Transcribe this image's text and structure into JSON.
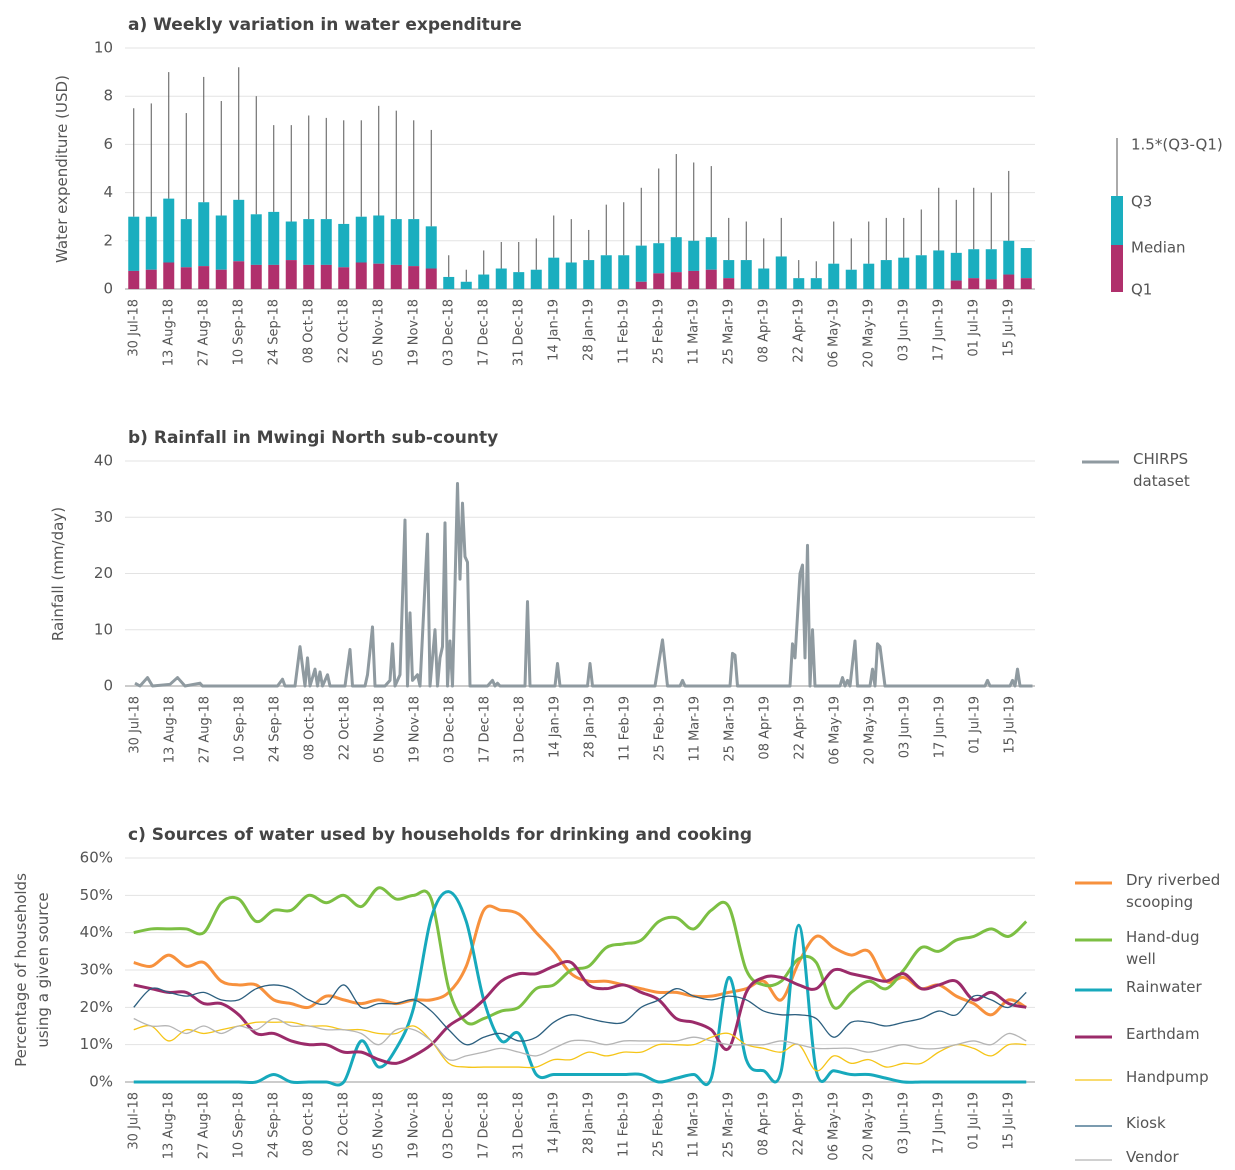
{
  "chart_data": [
    {
      "type": "box",
      "title": "a) Weekly variation in water expenditure",
      "ylabel": "Water expenditure (USD)",
      "categories": [
        "30 Jul-18",
        null,
        "13 Aug-18",
        null,
        "27 Aug-18",
        null,
        "10 Sep-18",
        null,
        "24 Sep-18",
        null,
        "08 Oct-18",
        null,
        "22 Oct-18",
        null,
        "05 Nov-18",
        null,
        "19 Nov-18",
        null,
        "03 Dec-18",
        null,
        "17 Dec-18",
        null,
        "31 Dec-18",
        null,
        "14 Jan-19",
        null,
        "28 Jan-19",
        null,
        "11 Feb-19",
        null,
        "25 Feb-19",
        null,
        "11 Mar-19",
        null,
        "25 Mar-19",
        null,
        "08 Apr-19",
        null,
        "22 Apr-19",
        null,
        "06 May-19",
        null,
        "20 May-19",
        null,
        "03 Jun-19",
        null,
        "17 Jun-19",
        null,
        "01 Jul-19",
        null,
        "15 Jul-19",
        null
      ],
      "series": [
        {
          "name": "1.5*(Q3-Q1)",
          "color": "#555555",
          "values": [
            7.5,
            7.7,
            9.0,
            7.3,
            8.8,
            7.8,
            9.2,
            8.0,
            6.8,
            6.8,
            7.2,
            7.1,
            7.0,
            7.0,
            7.6,
            7.4,
            7.0,
            6.6,
            1.4,
            0.8,
            1.6,
            1.95,
            1.95,
            2.1,
            3.05,
            2.9,
            2.45,
            3.5,
            3.6,
            4.2,
            5.0,
            5.6,
            5.25,
            5.1,
            2.95,
            2.8,
            2.1,
            2.95,
            1.2,
            1.15,
            2.8,
            2.1,
            2.8,
            2.95,
            2.95,
            3.3,
            4.2,
            3.7,
            4.2,
            4.0,
            4.9,
            null
          ]
        },
        {
          "name": "Q3",
          "color": "#1aaebf",
          "values": [
            3.0,
            3.0,
            3.75,
            2.9,
            3.6,
            3.05,
            3.7,
            3.1,
            3.2,
            2.8,
            2.9,
            2.9,
            2.7,
            3.0,
            3.05,
            2.9,
            2.9,
            2.6,
            0.5,
            0.3,
            0.6,
            0.85,
            0.7,
            0.8,
            1.3,
            1.1,
            1.2,
            1.4,
            1.4,
            1.8,
            1.9,
            2.15,
            2.0,
            2.15,
            1.2,
            1.2,
            0.85,
            1.35,
            0.45,
            0.45,
            1.05,
            0.8,
            1.05,
            1.2,
            1.3,
            1.4,
            1.6,
            1.5,
            1.65,
            1.65,
            2.0,
            1.7
          ]
        },
        {
          "name": "Median",
          "color": "#b0306c",
          "values": [
            0.75,
            0.8,
            1.1,
            0.9,
            0.95,
            0.8,
            1.15,
            1.0,
            1.0,
            1.2,
            1.0,
            1.0,
            0.9,
            1.1,
            1.05,
            1.0,
            0.95,
            0.85,
            0,
            0,
            0,
            0,
            0,
            0,
            0,
            0,
            0,
            0,
            0,
            0.3,
            0.65,
            0.7,
            0.75,
            0.8,
            0.45,
            0,
            0,
            0,
            0,
            0,
            0,
            0,
            0,
            0,
            0,
            0,
            0,
            0.35,
            0.45,
            0.4,
            0.6,
            0.45
          ]
        },
        {
          "name": "Q1",
          "color": "#b0306c",
          "values": [
            0,
            0,
            0,
            0,
            0,
            0,
            0,
            0,
            0,
            0,
            0,
            0,
            0,
            0,
            0,
            0,
            0,
            0,
            0,
            0,
            0,
            0,
            0,
            0,
            0,
            0,
            0,
            0,
            0,
            0,
            0,
            0,
            0,
            0,
            0,
            0,
            0,
            0,
            0,
            0,
            0,
            0,
            0,
            0,
            0,
            0,
            0,
            0,
            0,
            0,
            0,
            0
          ]
        }
      ],
      "ylim": [
        0,
        10
      ],
      "yticks": [
        0,
        2,
        4,
        6,
        8,
        10
      ],
      "grid": true
    },
    {
      "type": "line",
      "title": "b) Rainfall in Mwingi North sub-county",
      "ylabel": "Rainfall (mm/day)",
      "x": [
        "30 Jul-18",
        "01 Aug-18",
        "04 Aug-18",
        "06 Aug-18",
        "13 Aug-18",
        "16 Aug-18",
        "19 Aug-18",
        "25 Aug-18",
        "26 Aug-18",
        "25 Sep-18",
        "27 Sep-18",
        "28 Sep-18",
        "02 Oct-18",
        "04 Oct-18",
        "06 Oct-18",
        "07 Oct-18",
        "08 Oct-18",
        "10 Oct-18",
        "11 Oct-18",
        "12 Oct-18",
        "13 Oct-18",
        "15 Oct-18",
        "16 Oct-18",
        "22 Oct-18",
        "24 Oct-18",
        "25 Oct-18",
        "30 Oct-18",
        "31 Oct-18",
        "02 Nov-18",
        "03 Nov-18",
        "07 Nov-18",
        "09 Nov-18",
        "10 Nov-18",
        "11 Nov-18",
        "13 Nov-18",
        "15 Nov-18",
        "16 Nov-18",
        "17 Nov-18",
        "18 Nov-18",
        "20 Nov-18",
        "21 Nov-18",
        "24 Nov-18",
        "25 Nov-18",
        "27 Nov-18",
        "28 Nov-18",
        "29 Nov-18",
        "30 Nov-18",
        "01 Dec-18",
        "02 Dec-18",
        "03 Dec-18",
        "04 Dec-18",
        "06 Dec-18",
        "07 Dec-18",
        "08 Dec-18",
        "09 Dec-18",
        "10 Dec-18",
        "11 Dec-18",
        "18 Dec-18",
        "20 Dec-18",
        "21 Dec-18",
        "22 Dec-18",
        "23 Dec-18",
        "02 Jan-19",
        "03 Jan-19",
        "04 Jan-19",
        "14 Jan-19",
        "15 Jan-19",
        "16 Jan-19",
        "27 Jan-19",
        "28 Jan-19",
        "29 Jan-19",
        "23 Feb-19",
        "26 Feb-19",
        "28 Feb-19",
        "05 Mar-19",
        "06 Mar-19",
        "07 Mar-19",
        "25 Mar-19",
        "26 Mar-19",
        "27 Mar-19",
        "28 Mar-19",
        "18 Apr-19",
        "19 Apr-19",
        "20 Apr-19",
        "22 Apr-19",
        "23 Apr-19",
        "24 Apr-19",
        "25 Apr-19",
        "26 Apr-19",
        "27 Apr-19",
        "28 Apr-19",
        "08 May-19",
        "09 May-19",
        "10 May-19",
        "11 May-19",
        "12 May-19",
        "14 May-19",
        "15 May-19",
        "20 May-19",
        "21 May-19",
        "22 May-19",
        "23 May-19",
        "24 May-19",
        "26 May-19",
        "05 Jul-19",
        "06 Jul-19",
        "07 Jul-19",
        "15 Jul-19",
        "16 Jul-19",
        "17 Jul-19",
        "18 Jul-19",
        "19 Jul-19",
        "24 Jul-19"
      ],
      "series": [
        {
          "name": "CHIRPS dataset",
          "color": "#8f9aa0",
          "values": [
            0.5,
            0,
            1.5,
            0,
            0.3,
            1.5,
            0,
            0.5,
            0,
            0,
            1.2,
            0,
            0,
            7,
            0,
            5,
            0,
            3,
            0,
            2.5,
            0,
            2,
            0,
            0,
            6.5,
            0,
            0,
            2,
            10.5,
            0,
            0,
            1,
            7.5,
            0,
            2,
            29.5,
            0,
            13,
            1,
            2,
            0,
            27,
            0,
            10,
            0,
            5,
            7,
            29,
            0,
            8,
            0,
            36,
            19,
            32.5,
            23,
            22,
            0,
            0,
            1,
            0,
            0.5,
            0,
            0,
            15,
            0,
            0,
            4,
            0,
            0,
            4,
            0,
            0,
            8.2,
            0,
            0,
            1,
            0,
            0,
            5.8,
            5.5,
            0,
            0,
            7.5,
            5,
            20,
            21.5,
            5,
            25,
            0,
            10,
            0,
            0,
            1.5,
            0,
            1,
            0,
            8,
            0,
            0,
            3,
            0,
            7.5,
            7,
            0,
            0,
            1,
            0,
            0,
            1,
            0,
            3,
            0,
            0
          ]
        }
      ],
      "xlim": [
        "26 Jul-18",
        "25 Jul-19"
      ],
      "xticks": [
        "30 Jul-18",
        "13 Aug-18",
        "27 Aug-18",
        "10 Sep-18",
        "24 Sep-18",
        "08 Oct-18",
        "22 Oct-18",
        "05 Nov-18",
        "19 Nov-18",
        "03 Dec-18",
        "17 Dec-18",
        "31 Dec-18",
        "14 Jan-19",
        "28 Jan-19",
        "11 Feb-19",
        "25 Feb-19",
        "11 Mar-19",
        "25 Mar-19",
        "08 Apr-19",
        "22 Apr-19",
        "06 May-19",
        "20 May-19",
        "03 Jun-19",
        "17 Jun-19",
        "01 Jul-19",
        "15 Jul-19"
      ],
      "ylim": [
        0,
        40
      ],
      "yticks": [
        0,
        10,
        20,
        30,
        40
      ],
      "grid": true
    },
    {
      "type": "line",
      "title": "c) Sources of water used by households for drinking and cooking",
      "ylabel": "Percentage of households using a given source",
      "categories": [
        "30 Jul-18",
        null,
        "13 Aug-18",
        null,
        "27 Aug-18",
        null,
        "10 Sep-18",
        null,
        "24 Sep-18",
        null,
        "08 Oct-18",
        null,
        "22 Oct-18",
        null,
        "05 Nov-18",
        null,
        "19 Nov-18",
        null,
        "03 Dec-18",
        null,
        "17 Dec-18",
        null,
        "31 Dec-18",
        null,
        "14 Jan-19",
        null,
        "28 Jan-19",
        null,
        "11 Feb-19",
        null,
        "25 Feb-19",
        null,
        "11 Mar-19",
        null,
        "25 Mar-19",
        null,
        "08 Apr-19",
        null,
        "22 Apr-19",
        null,
        "06 May-19",
        null,
        "20 May-19",
        null,
        "03 Jun-19",
        null,
        "17 Jun-19",
        null,
        "01 Jul-19",
        null,
        "15 Jul-19",
        null
      ],
      "series": [
        {
          "name": "Dry riverbed scooping",
          "color": "#f7913d",
          "values": [
            32,
            31,
            34,
            31,
            32,
            27,
            26,
            26,
            22,
            21,
            20,
            23,
            22,
            21,
            22,
            21,
            22,
            22,
            24,
            31,
            46,
            46,
            45,
            40,
            35,
            29,
            27,
            27,
            26,
            25,
            24,
            24,
            23,
            23,
            24,
            25,
            27,
            22,
            32,
            39,
            36,
            34,
            35,
            27,
            28,
            25,
            26,
            23,
            21,
            18,
            22,
            20
          ]
        },
        {
          "name": "Hand-dug well",
          "color": "#7cbf43",
          "values": [
            40,
            41,
            41,
            41,
            40,
            48,
            49,
            43,
            46,
            46,
            50,
            48,
            50,
            47,
            52,
            49,
            50,
            49,
            25,
            16,
            17,
            19,
            20,
            25,
            26,
            30,
            31,
            36,
            37,
            38,
            43,
            44,
            41,
            46,
            47,
            30,
            26,
            27,
            33,
            32,
            20,
            24,
            27,
            25,
            30,
            36,
            35,
            38,
            39,
            41,
            39,
            43
          ]
        },
        {
          "name": "Rainwater",
          "color": "#17a9bc",
          "values": [
            0,
            0,
            0,
            0,
            0,
            0,
            0,
            0,
            2,
            0,
            0,
            0,
            0,
            11,
            4,
            9,
            20,
            44,
            51,
            43,
            22,
            11,
            13,
            2,
            2,
            2,
            2,
            2,
            2,
            2,
            0,
            1,
            2,
            1,
            28,
            6,
            3,
            3,
            42,
            3,
            3,
            2,
            2,
            1,
            0,
            0,
            0,
            0,
            0,
            0,
            0,
            0
          ]
        },
        {
          "name": "Earthdam",
          "color": "#9b2b6a",
          "values": [
            26,
            25,
            24,
            24,
            21,
            21,
            18,
            13,
            13,
            11,
            10,
            10,
            8,
            8,
            6,
            5,
            7,
            10,
            15,
            18,
            22,
            27,
            29,
            29,
            31,
            32,
            26,
            25,
            26,
            24,
            22,
            17,
            16,
            14,
            9,
            24,
            28,
            28,
            26,
            25,
            30,
            29,
            28,
            27,
            29,
            25,
            26,
            27,
            22,
            24,
            21,
            20
          ]
        },
        {
          "name": "Handpump",
          "color": "#f5c518",
          "values": [
            14,
            15,
            11,
            14,
            13,
            14,
            15,
            16,
            16,
            16,
            15,
            15,
            14,
            14,
            13,
            13,
            15,
            11,
            5,
            4,
            4,
            4,
            4,
            4,
            6,
            6,
            8,
            7,
            8,
            8,
            10,
            10,
            10,
            12,
            13,
            10,
            9,
            8,
            10,
            3,
            7,
            5,
            6,
            4,
            5,
            5,
            8,
            10,
            9,
            7,
            10,
            10
          ]
        },
        {
          "name": "Kiosk",
          "color": "#2c5f7f",
          "values": [
            20,
            25,
            24,
            23,
            24,
            22,
            22,
            25,
            26,
            25,
            22,
            21,
            26,
            20,
            21,
            21,
            22,
            19,
            14,
            10,
            12,
            13,
            11,
            12,
            16,
            18,
            17,
            16,
            16,
            20,
            22,
            25,
            23,
            22,
            23,
            22,
            19,
            18,
            18,
            17,
            12,
            16,
            16,
            15,
            16,
            17,
            19,
            18,
            23,
            22,
            20,
            24
          ]
        },
        {
          "name": "Vendor",
          "color": "#b5b5b5",
          "values": [
            17,
            15,
            15,
            13,
            15,
            13,
            15,
            14,
            17,
            15,
            15,
            14,
            14,
            13,
            10,
            14,
            14,
            11,
            6,
            7,
            8,
            9,
            8,
            7,
            9,
            11,
            11,
            10,
            11,
            11,
            11,
            11,
            12,
            11,
            10,
            10,
            10,
            11,
            10,
            9,
            9,
            9,
            8,
            9,
            10,
            9,
            9,
            10,
            11,
            10,
            13,
            11
          ]
        }
      ],
      "ylim": [
        0,
        60
      ],
      "yticks": [
        {
          "value": 0,
          "label": "0%"
        },
        {
          "value": 10,
          "label": "10%"
        },
        {
          "value": 20,
          "label": "20%"
        },
        {
          "value": 30,
          "label": "30%"
        },
        {
          "value": 40,
          "label": "40%"
        },
        {
          "value": 50,
          "label": "50%"
        },
        {
          "value": 60,
          "label": "60%"
        }
      ],
      "grid": true
    }
  ]
}
